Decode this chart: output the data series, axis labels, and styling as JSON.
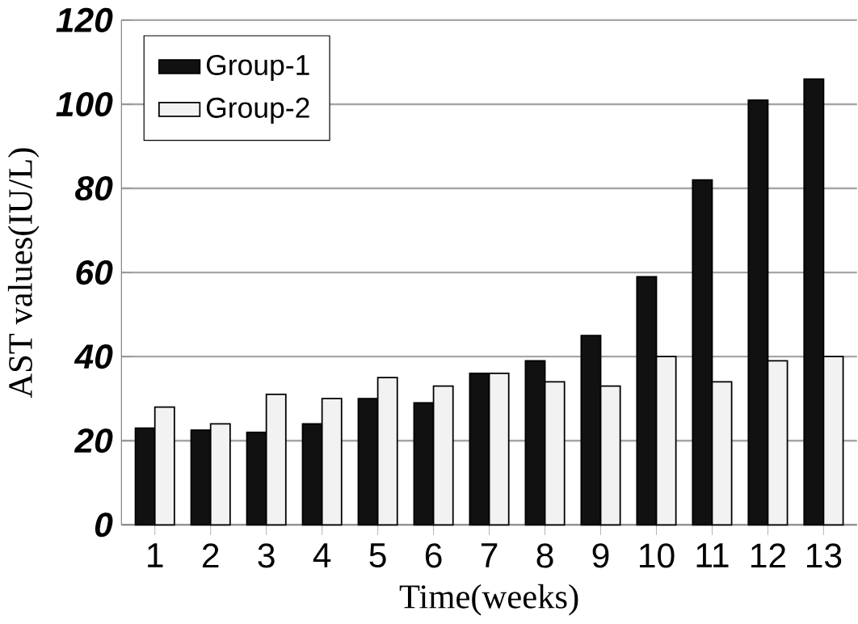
{
  "chart_data": {
    "type": "bar",
    "xlabel": "Time(weeks)",
    "ylabel": "AST values(IU/L)",
    "categories": [
      "1",
      "2",
      "3",
      "4",
      "5",
      "6",
      "7",
      "8",
      "9",
      "10",
      "11",
      "12",
      "13"
    ],
    "series": [
      {
        "name": "Group-1",
        "color": "#111111",
        "values": [
          23,
          22.5,
          22,
          24,
          30,
          29,
          36,
          39,
          45,
          59,
          82,
          101,
          106
        ]
      },
      {
        "name": "Group-2",
        "color": "#f2f2f2",
        "values": [
          28,
          24,
          31,
          30,
          35,
          33,
          36,
          34,
          33,
          40,
          34,
          39,
          40
        ]
      }
    ],
    "ylim": [
      0,
      120
    ],
    "yticks": [
      0,
      20,
      40,
      60,
      80,
      100,
      120
    ],
    "grid": "y",
    "legend": "top left"
  }
}
